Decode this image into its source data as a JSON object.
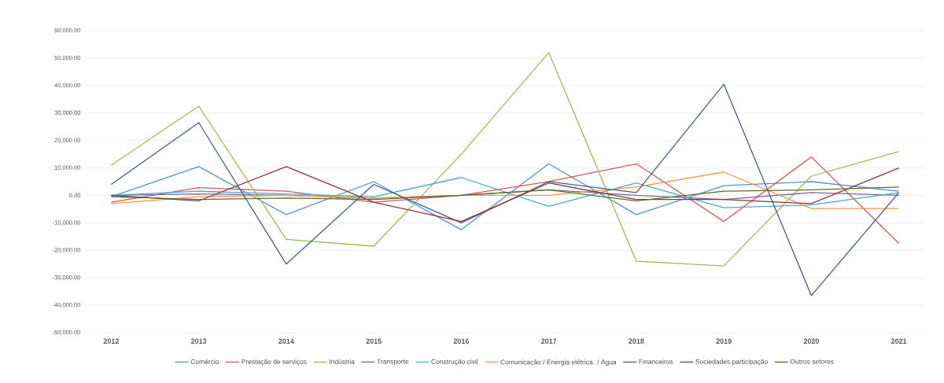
{
  "chart_data": {
    "type": "line",
    "categories": [
      "2012",
      "2013",
      "2014",
      "2015",
      "2016",
      "2017",
      "2018",
      "2019",
      "2020",
      "2021"
    ],
    "series": [
      {
        "name": "Comércio",
        "color": "#5b8fd0",
        "values": [
          -500,
          10500,
          -7000,
          5000,
          -12500,
          11500,
          -7000,
          3500,
          5000,
          1500
        ]
      },
      {
        "name": "Prestação de serviços",
        "color": "#d05a55",
        "values": [
          -2500,
          2800,
          1500,
          -2500,
          0,
          5000,
          11500,
          -9500,
          14000,
          -17500
        ]
      },
      {
        "name": "Indústria",
        "color": "#9bbb59",
        "values": [
          11000,
          32500,
          -16000,
          -18500,
          15000,
          52000,
          -24000,
          -25700,
          7000,
          16000
        ]
      },
      {
        "name": "Transporte",
        "color": "#8064a2",
        "values": [
          0,
          500,
          0,
          -1000,
          0,
          2000,
          0,
          -1500,
          1000,
          0
        ]
      },
      {
        "name": "Construção civil",
        "color": "#4bacc6",
        "values": [
          0,
          1500,
          500,
          -500,
          6500,
          -4000,
          4500,
          -4500,
          -3500,
          1000
        ]
      },
      {
        "name": "Comunicação / Energia elétrica. / Água",
        "color": "#f79646",
        "values": [
          -3000,
          -500,
          0,
          -1000,
          0,
          0,
          3000,
          8500,
          -4800,
          -4800
        ]
      },
      {
        "name": "Financeiros",
        "color": "#3f5f8a",
        "values": [
          4000,
          26500,
          -25000,
          4000,
          -10000,
          5000,
          1000,
          40500,
          -36500,
          1000
        ]
      },
      {
        "name": "Sociedades participação",
        "color": "#8b3535",
        "values": [
          0,
          -2000,
          10500,
          -2500,
          -9500,
          4500,
          -1500,
          -1500,
          -3000,
          10000
        ]
      },
      {
        "name": "Outros setores",
        "color": "#5a6e2c",
        "values": [
          -500,
          -1500,
          -1000,
          -1500,
          0,
          2000,
          -2000,
          1500,
          2000,
          3000
        ]
      }
    ],
    "ylim": [
      -50000,
      60000
    ],
    "yticks": [
      {
        "value": -50000,
        "label": "-50,000.00"
      },
      {
        "value": -40000,
        "label": "-40,000.00"
      },
      {
        "value": -30000,
        "label": "-30,000.00"
      },
      {
        "value": -20000,
        "label": "-20,000.00"
      },
      {
        "value": -10000,
        "label": "-10,000.00"
      },
      {
        "value": 0,
        "label": "0.00"
      },
      {
        "value": 10000,
        "label": "10,000.00"
      },
      {
        "value": 20000,
        "label": "20,000.00"
      },
      {
        "value": 30000,
        "label": "30,000.00"
      },
      {
        "value": 40000,
        "label": "40,000.00"
      },
      {
        "value": 50000,
        "label": "50,000.00"
      },
      {
        "value": 60000,
        "label": "60,000.00"
      }
    ],
    "grid": "y",
    "legend": "bottom",
    "marker": "none",
    "line_style": "solid"
  }
}
